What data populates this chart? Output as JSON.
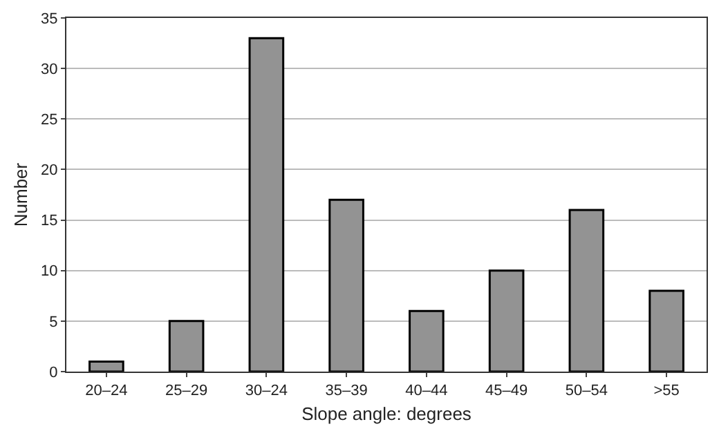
{
  "chart_data": {
    "type": "bar",
    "xlabel": "Slope angle: degrees",
    "ylabel": "Number",
    "categories": [
      "20–24",
      "25–29",
      "30–24",
      "35–39",
      "40–44",
      "45–49",
      "50–54",
      ">55"
    ],
    "values": [
      1,
      5,
      33,
      17,
      6,
      10,
      16,
      8
    ],
    "color": "#939393",
    "ylim": [
      0,
      35
    ],
    "yticks": [
      0,
      5,
      10,
      15,
      20,
      25,
      30,
      35
    ],
    "grid": "y",
    "legend": false
  }
}
